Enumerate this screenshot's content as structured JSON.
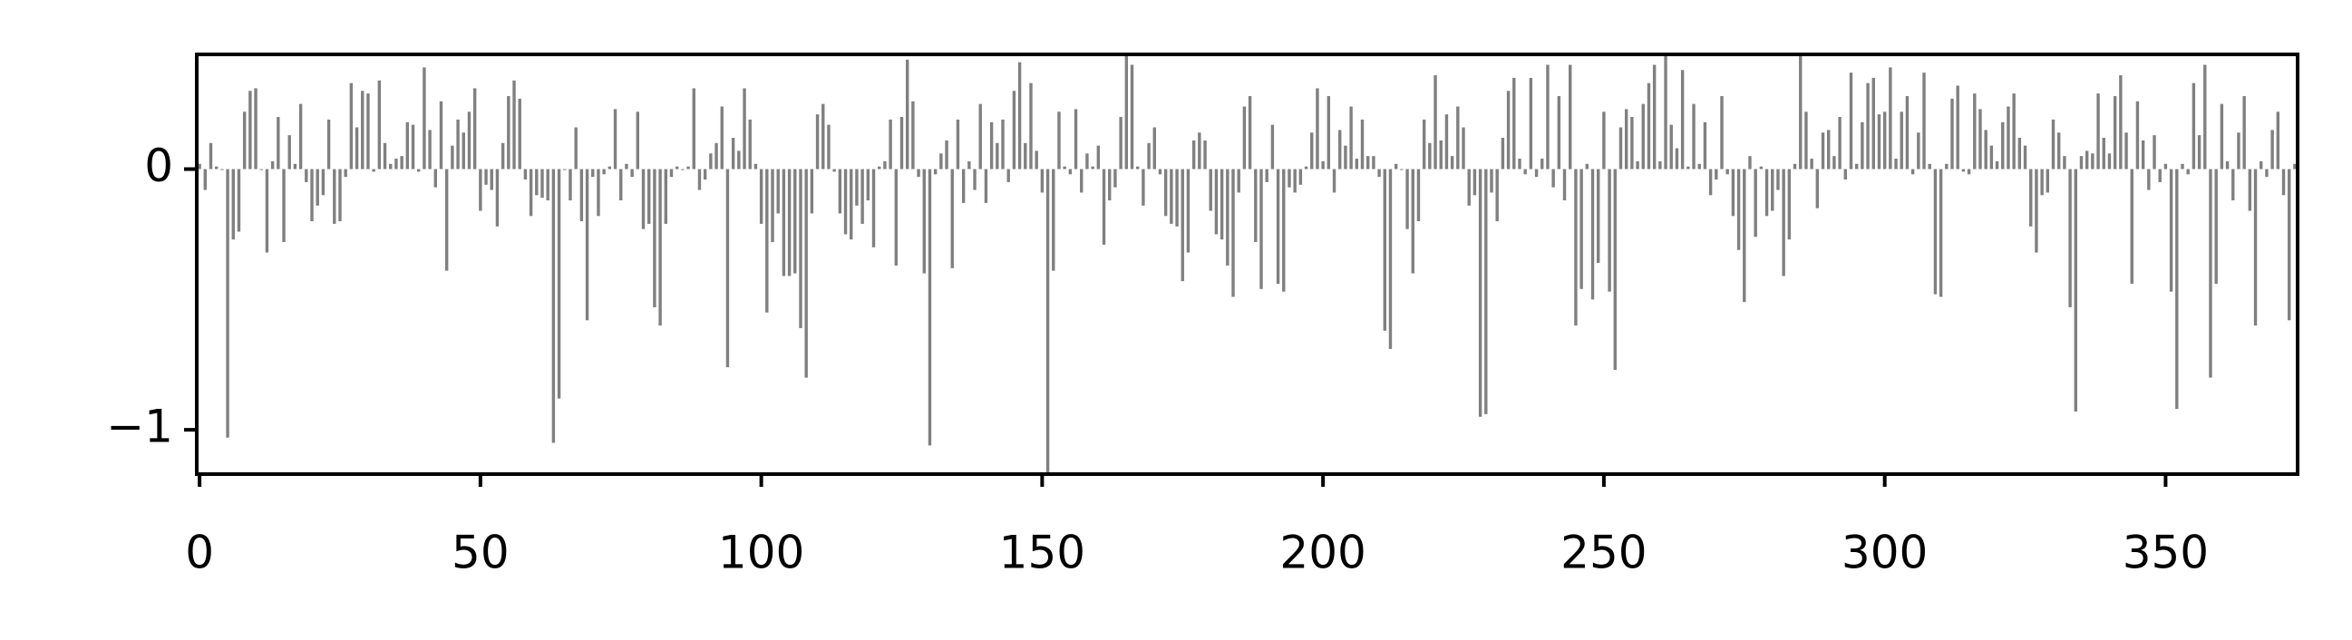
{
  "chart_data": {
    "type": "bar",
    "color": "#808080",
    "x": [
      0,
      1,
      2,
      3,
      4,
      5,
      6,
      7,
      8,
      9,
      10,
      11,
      12,
      13,
      14,
      15,
      16,
      17,
      18,
      19,
      20,
      21,
      22,
      23,
      24,
      25,
      26,
      27,
      28,
      29,
      30,
      31,
      32,
      33,
      34,
      35,
      36,
      37,
      38,
      39,
      40,
      41,
      42,
      43,
      44,
      45,
      46,
      47,
      48,
      49,
      50,
      51,
      52,
      53,
      54,
      55,
      56,
      57,
      58,
      59,
      60,
      61,
      62,
      63,
      64,
      65,
      66,
      67,
      68,
      69,
      70,
      71,
      72,
      73,
      74,
      75,
      76,
      77,
      78,
      79,
      80,
      81,
      82,
      83,
      84,
      85,
      86,
      87,
      88,
      89,
      90,
      91,
      92,
      93,
      94,
      95,
      96,
      97,
      98,
      99,
      100,
      101,
      102,
      103,
      104,
      105,
      106,
      107,
      108,
      109,
      110,
      111,
      112,
      113,
      114,
      115,
      116,
      117,
      118,
      119,
      120,
      121,
      122,
      123,
      124,
      125,
      126,
      127,
      128,
      129,
      130,
      131,
      132,
      133,
      134,
      135,
      136,
      137,
      138,
      139,
      140,
      141,
      142,
      143,
      144,
      145,
      146,
      147,
      148,
      149,
      150,
      151,
      152,
      153,
      154,
      155,
      156,
      157,
      158,
      159,
      160,
      161,
      162,
      163,
      164,
      165,
      166,
      167,
      168,
      169,
      170,
      171,
      172,
      173,
      174,
      175,
      176,
      177,
      178,
      179,
      180,
      181,
      182,
      183,
      184,
      185,
      186,
      187,
      188,
      189,
      190,
      191,
      192,
      193,
      194,
      195,
      196,
      197,
      198,
      199,
      200,
      201,
      202,
      203,
      204,
      205,
      206,
      207,
      208,
      209,
      210,
      211,
      212,
      213,
      214,
      215,
      216,
      217,
      218,
      219,
      220,
      221,
      222,
      223,
      224,
      225,
      226,
      227,
      228,
      229,
      230,
      231,
      232,
      233,
      234,
      235,
      236,
      237,
      238,
      239,
      240,
      241,
      242,
      243,
      244,
      245,
      246,
      247,
      248,
      249,
      250,
      251,
      252,
      253,
      254,
      255,
      256,
      257,
      258,
      259,
      260,
      261,
      262,
      263,
      264,
      265,
      266,
      267,
      268,
      269,
      270,
      271,
      272,
      273,
      274,
      275,
      276,
      277,
      278,
      279,
      280,
      281,
      282,
      283,
      284,
      285,
      286,
      287,
      288,
      289,
      290,
      291,
      292,
      293,
      294,
      295,
      296,
      297,
      298,
      299,
      300,
      301,
      302,
      303,
      304,
      305,
      306,
      307,
      308,
      309,
      310,
      311,
      312,
      313,
      314,
      315,
      316,
      317,
      318,
      319,
      320,
      321,
      322,
      323,
      324,
      325,
      326,
      327,
      328,
      329,
      330,
      331,
      332,
      333,
      334,
      335,
      336,
      337,
      338,
      339,
      340,
      341,
      342,
      343,
      344,
      345,
      346,
      347,
      348,
      349,
      350,
      351,
      352,
      353,
      354,
      355,
      356,
      357,
      358,
      359,
      360,
      361,
      362,
      363,
      364,
      365,
      366,
      367,
      368,
      369,
      370,
      371,
      372,
      373
    ],
    "values": [
      0.02,
      -0.08,
      0.1,
      0.01,
      0,
      -1.03,
      -0.27,
      -0.24,
      0.22,
      0.3,
      0.31,
      0,
      -0.32,
      0.03,
      0.2,
      -0.28,
      0.13,
      0.02,
      0.25,
      -0.05,
      -0.2,
      -0.14,
      -0.1,
      0.19,
      -0.21,
      -0.2,
      -0.03,
      0.33,
      0.16,
      0.3,
      0.29,
      -0.01,
      0.34,
      0.1,
      0.02,
      0.04,
      0.05,
      0.18,
      0.17,
      -0.01,
      0.39,
      0.15,
      -0.07,
      0.26,
      -0.39,
      0.09,
      0.19,
      0.14,
      0.22,
      0.31,
      -0.16,
      -0.06,
      -0.08,
      -0.22,
      0.1,
      0.28,
      0.34,
      0.27,
      -0.04,
      -0.18,
      -0.1,
      -0.11,
      -0.12,
      -1.05,
      -0.88,
      0,
      -0.12,
      0.16,
      -0.2,
      -0.58,
      -0.03,
      -0.18,
      -0.02,
      0.01,
      0.23,
      -0.12,
      0.02,
      -0.03,
      0.22,
      -0.23,
      -0.21,
      -0.53,
      -0.6,
      -0.21,
      -0.03,
      0.01,
      0,
      0.01,
      0.31,
      -0.08,
      -0.04,
      0.06,
      0.1,
      0.24,
      -0.76,
      0.12,
      0.07,
      0.31,
      0.19,
      0.02,
      -0.21,
      -0.55,
      -0.28,
      -0.17,
      -0.41,
      -0.41,
      -0.4,
      -0.61,
      -0.8,
      -0.17,
      0.21,
      0.25,
      0.17,
      -0.01,
      -0.17,
      -0.25,
      -0.27,
      -0.14,
      -0.21,
      -0.12,
      -0.3,
      0.01,
      0.03,
      0.19,
      -0.37,
      0.2,
      0.42,
      0.26,
      -0.03,
      -0.4,
      -1.06,
      -0.02,
      0.06,
      0.11,
      -0.38,
      0.19,
      -0.13,
      0.03,
      -0.08,
      0.25,
      -0.13,
      0.18,
      0.1,
      0.19,
      -0.05,
      0.3,
      0.41,
      0.1,
      0.33,
      0.07,
      -0.09,
      -1.17,
      -0.39,
      0.22,
      0.01,
      -0.02,
      0.23,
      -0.09,
      0.06,
      0.01,
      0.09,
      -0.29,
      -0.12,
      -0.07,
      0.2,
      0.44,
      0.4,
      0.01,
      -0.14,
      0.1,
      0.16,
      -0.02,
      -0.18,
      -0.21,
      -0.22,
      -0.43,
      -0.32,
      0.11,
      0.14,
      0.11,
      -0.16,
      -0.25,
      -0.27,
      -0.37,
      -0.49,
      -0.09,
      0.24,
      0.28,
      -0.28,
      -0.46,
      -0.05,
      0.17,
      -0.44,
      -0.47,
      -0.07,
      -0.09,
      -0.06,
      0.01,
      0.14,
      0.31,
      0.03,
      0.28,
      -0.09,
      0.15,
      0.09,
      0.24,
      0.04,
      0.19,
      0.05,
      0.05,
      -0.03,
      -0.62,
      -0.69,
      0.02,
      0,
      -0.23,
      -0.4,
      -0.2,
      0.19,
      0.1,
      0.36,
      0.11,
      0.21,
      0.05,
      0.24,
      0.16,
      -0.14,
      -0.1,
      -0.95,
      -0.94,
      -0.09,
      -0.2,
      0.12,
      0.3,
      0.35,
      0.04,
      -0.02,
      0.35,
      -0.03,
      0.04,
      0.4,
      -0.07,
      0.28,
      -0.12,
      0.4,
      -0.6,
      -0.46,
      0.02,
      -0.5,
      -0.36,
      0.22,
      -0.47,
      -0.77,
      0.16,
      0.23,
      0.2,
      0.03,
      0.25,
      0.33,
      0.4,
      0.03,
      0.44,
      0.17,
      0.08,
      0.38,
      0.01,
      0.25,
      0.02,
      0.18,
      -0.1,
      -0.04,
      0.28,
      -0.02,
      -0.18,
      -0.31,
      -0.51,
      0.05,
      -0.26,
      0.01,
      -0.18,
      -0.16,
      -0.08,
      -0.41,
      -0.27,
      0.02,
      0.44,
      0.22,
      0.04,
      -0.15,
      0.14,
      0.15,
      0.05,
      0.2,
      -0.04,
      0.37,
      0.02,
      0.18,
      0.33,
      0.35,
      0.21,
      0.22,
      0.39,
      0.04,
      0.22,
      0.28,
      -0.02,
      0.14,
      0.37,
      0.02,
      -0.48,
      -0.49,
      0.02,
      0.27,
      0.32,
      -0.01,
      -0.02,
      0.29,
      0.23,
      0.15,
      0.09,
      0.03,
      0.18,
      0.24,
      0.29,
      0.12,
      0.09,
      -0.22,
      -0.32,
      -0.1,
      -0.09,
      0.19,
      0.14,
      0.05,
      -0.53,
      -0.93,
      0.05,
      0.07,
      0.06,
      0.29,
      0.12,
      0.06,
      0.28,
      0.36,
      0.14,
      -0.44,
      0.26,
      0.11,
      -0.08,
      0.13,
      -0.05,
      0.02,
      -0.47,
      -0.92,
      0.02,
      -0.02,
      0.33,
      0.13,
      0.4,
      -0.8,
      -0.44,
      0.25,
      0.03,
      -0.12,
      0.14,
      0.28,
      -0.16,
      -0.6,
      0.03,
      -0.03,
      0.15,
      0.22,
      -0.1,
      -0.58,
      0.02
    ],
    "xlim": [
      -0.5,
      373.5
    ],
    "xticks": [
      0,
      50,
      100,
      150,
      200,
      250,
      300,
      350
    ],
    "ylim": [
      -1.17,
      0.44
    ],
    "yticks": [
      {
        "value": -1,
        "label": "−1"
      },
      0
    ]
  }
}
